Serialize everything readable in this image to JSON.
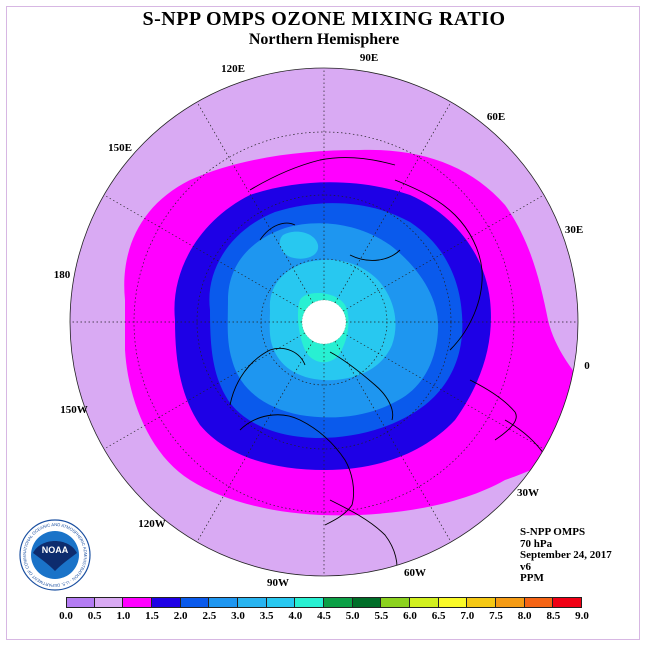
{
  "title": "S-NPP OMPS OZONE MIXING RATIO",
  "subtitle": "Northern Hemisphere",
  "longitude_labels": [
    "90E",
    "60E",
    "30E",
    "0",
    "30W",
    "60W",
    "90W",
    "120W",
    "150W",
    "180",
    "150E",
    "120E"
  ],
  "info": {
    "instrument": "S-NPP OMPS",
    "level": "70 hPa",
    "date": "September 24, 2017",
    "version": "v6",
    "units": "PPM"
  },
  "colorbar": {
    "ticks": [
      "0.0",
      "0.5",
      "1.0",
      "1.5",
      "2.0",
      "2.5",
      "3.0",
      "3.5",
      "4.0",
      "4.5",
      "5.0",
      "5.5",
      "6.0",
      "6.5",
      "7.0",
      "7.5",
      "8.0",
      "8.5",
      "9.0"
    ],
    "colors": [
      "#b47cf3",
      "#d9aaf3",
      "#ff00ff",
      "#1e00e6",
      "#0a5aec",
      "#1e96f0",
      "#28b4f0",
      "#28c8f0",
      "#28f0d2",
      "#0ca046",
      "#006e28",
      "#8cd21e",
      "#d2f01e",
      "#fafa28",
      "#f5c814",
      "#f59b14",
      "#f56414",
      "#f00014",
      "#8c5a3c"
    ]
  },
  "colors": {
    "below_1_0": "#d9aaf3",
    "band_1_0_1_5": "#ff00ff",
    "band_1_5_2_0": "#1e00e6",
    "band_2_0_2_5": "#0a5aec",
    "band_2_5_3_0": "#1e96f0",
    "band_3_0_3_5": "#28c8f0",
    "band_3_5_4_0": "#28f0d2"
  },
  "logo": {
    "text": "NOAA",
    "ring_text": "NATIONAL OCEANIC AND ATMOSPHERIC ADMINISTRATION · U.S. DEPARTMENT OF COMMERCE"
  }
}
